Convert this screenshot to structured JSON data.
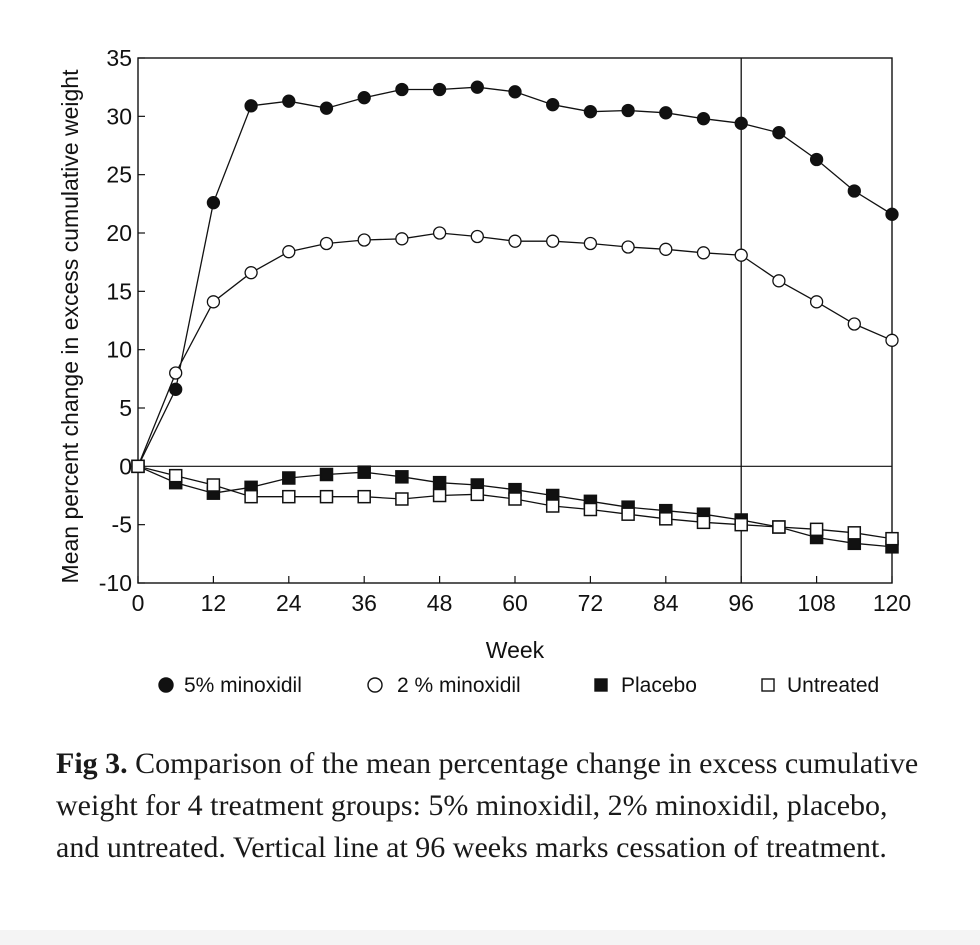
{
  "chart_data": {
    "type": "line",
    "title": "",
    "xlabel": "Week",
    "ylabel": "Mean percent change in excess cumulative weight",
    "x": [
      0,
      6,
      12,
      18,
      24,
      30,
      36,
      42,
      48,
      54,
      60,
      66,
      72,
      78,
      84,
      90,
      96,
      102,
      108,
      114,
      120
    ],
    "xticks": [
      "0",
      "12",
      "24",
      "36",
      "48",
      "60",
      "72",
      "84",
      "96",
      "108",
      "120"
    ],
    "xtick_values": [
      0,
      12,
      24,
      36,
      48,
      60,
      72,
      84,
      96,
      108,
      120
    ],
    "yticks": [
      "35",
      "30",
      "25",
      "20",
      "15",
      "10",
      "5",
      "0",
      "-5",
      "-10"
    ],
    "ytick_values": [
      35,
      30,
      25,
      20,
      15,
      10,
      5,
      0,
      -5,
      -10
    ],
    "xlim": [
      0,
      120
    ],
    "ylim": [
      -10,
      35
    ],
    "grid": false,
    "legend_position": "bottom",
    "reference_lines": {
      "vertical_x": 96,
      "horizontal_y": 0
    },
    "series": [
      {
        "name": "5% minoxidil",
        "marker": "filled-circle",
        "values": [
          0,
          6.6,
          22.6,
          30.9,
          31.3,
          30.7,
          31.6,
          32.3,
          32.3,
          32.5,
          32.1,
          31.0,
          30.4,
          30.5,
          30.3,
          29.8,
          29.4,
          28.6,
          26.3,
          23.6,
          21.6
        ]
      },
      {
        "name": "2 % minoxidil",
        "marker": "open-circle",
        "values": [
          0,
          8.0,
          14.1,
          16.6,
          18.4,
          19.1,
          19.4,
          19.5,
          20.0,
          19.7,
          19.3,
          19.3,
          19.1,
          18.8,
          18.6,
          18.3,
          18.1,
          15.9,
          14.1,
          12.2,
          10.8
        ]
      },
      {
        "name": "Placebo",
        "marker": "filled-square",
        "values": [
          0,
          -1.4,
          -2.3,
          -1.8,
          -1.0,
          -0.7,
          -0.5,
          -0.9,
          -1.4,
          -1.6,
          -2.0,
          -2.5,
          -3.0,
          -3.5,
          -3.8,
          -4.1,
          -4.6,
          -5.2,
          -6.1,
          -6.6,
          -6.9
        ]
      },
      {
        "name": "Untreated",
        "marker": "open-square",
        "values": [
          0,
          -0.8,
          -1.6,
          -2.6,
          -2.6,
          -2.6,
          -2.6,
          -2.8,
          -2.5,
          -2.4,
          -2.8,
          -3.4,
          -3.7,
          -4.1,
          -4.5,
          -4.8,
          -5.0,
          -5.2,
          -5.4,
          -5.7,
          -6.2
        ]
      }
    ]
  },
  "caption": {
    "label": "Fig 3.",
    "text": "Comparison of the mean percentage change in excess cumulative weight for 4 treatment groups: 5% minoxidil, 2% minoxidil, placebo, and untreated. Vertical line at 96 weeks marks cessation of treatment."
  },
  "colors": {
    "ink": "#111111",
    "background": "#ffffff"
  }
}
